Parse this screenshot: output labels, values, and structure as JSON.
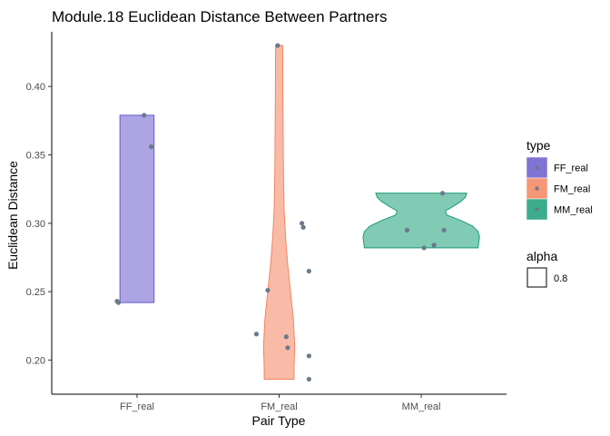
{
  "chart_data": {
    "type": "violin",
    "title": "Module.18 Euclidean Distance Between Partners",
    "xlabel": "Pair Type",
    "ylabel": "Euclidean Distance",
    "categories": [
      "FF_real",
      "FM_real",
      "MM_real"
    ],
    "ylim": [
      0.175,
      0.44
    ],
    "yticks": [
      0.2,
      0.25,
      0.3,
      0.35,
      0.4
    ],
    "ytick_labels": [
      "0.20",
      "0.25",
      "0.30",
      "0.35",
      "0.40"
    ],
    "grid": false,
    "legend_position": "right",
    "point_color": "#6a7a8a",
    "series": [
      {
        "name": "FF_real",
        "color": "#6a5acd",
        "points": [
          {
            "x": -0.14,
            "y": 0.243
          },
          {
            "x": -0.13,
            "y": 0.242
          },
          {
            "x": 0.05,
            "y": 0.379
          },
          {
            "x": 0.1,
            "y": 0.356
          }
        ],
        "violin": [
          {
            "y": 0.242,
            "w": 0.12
          },
          {
            "y": 0.3,
            "w": 0.12
          },
          {
            "y": 0.379,
            "w": 0.12
          }
        ]
      },
      {
        "name": "FM_real",
        "color": "#f4845f",
        "points": [
          {
            "x": -0.01,
            "y": 0.43
          },
          {
            "x": 0.16,
            "y": 0.3
          },
          {
            "x": 0.17,
            "y": 0.297
          },
          {
            "x": 0.21,
            "y": 0.265
          },
          {
            "x": -0.08,
            "y": 0.251
          },
          {
            "x": -0.16,
            "y": 0.219
          },
          {
            "x": 0.05,
            "y": 0.217
          },
          {
            "x": 0.06,
            "y": 0.209
          },
          {
            "x": 0.21,
            "y": 0.203
          },
          {
            "x": 0.21,
            "y": 0.186
          }
        ],
        "violin": [
          {
            "y": 0.186,
            "w": 0.105
          },
          {
            "y": 0.195,
            "w": 0.105
          },
          {
            "y": 0.21,
            "w": 0.11
          },
          {
            "y": 0.23,
            "w": 0.1
          },
          {
            "y": 0.25,
            "w": 0.08
          },
          {
            "y": 0.27,
            "w": 0.06
          },
          {
            "y": 0.29,
            "w": 0.045
          },
          {
            "y": 0.31,
            "w": 0.035
          },
          {
            "y": 0.34,
            "w": 0.03
          },
          {
            "y": 0.37,
            "w": 0.028
          },
          {
            "y": 0.4,
            "w": 0.026
          },
          {
            "y": 0.43,
            "w": 0.025
          }
        ]
      },
      {
        "name": "MM_real",
        "color": "#1a9e77",
        "points": [
          {
            "x": 0.15,
            "y": 0.322
          },
          {
            "x": -0.1,
            "y": 0.295
          },
          {
            "x": 0.16,
            "y": 0.295
          },
          {
            "x": 0.09,
            "y": 0.284
          },
          {
            "x": 0.02,
            "y": 0.282
          }
        ],
        "violin": [
          {
            "y": 0.282,
            "w": 0.4
          },
          {
            "y": 0.286,
            "w": 0.405
          },
          {
            "y": 0.29,
            "w": 0.41
          },
          {
            "y": 0.294,
            "w": 0.4
          },
          {
            "y": 0.298,
            "w": 0.36
          },
          {
            "y": 0.302,
            "w": 0.28
          },
          {
            "y": 0.306,
            "w": 0.18
          },
          {
            "y": 0.309,
            "w": 0.17
          },
          {
            "y": 0.312,
            "w": 0.22
          },
          {
            "y": 0.316,
            "w": 0.28
          },
          {
            "y": 0.319,
            "w": 0.31
          },
          {
            "y": 0.322,
            "w": 0.32
          }
        ]
      }
    ],
    "legend": {
      "type_title": "type",
      "type_items": [
        "FF_real",
        "FM_real",
        "MM_real"
      ],
      "alpha_title": "alpha",
      "alpha_items": [
        "0.8"
      ]
    }
  }
}
